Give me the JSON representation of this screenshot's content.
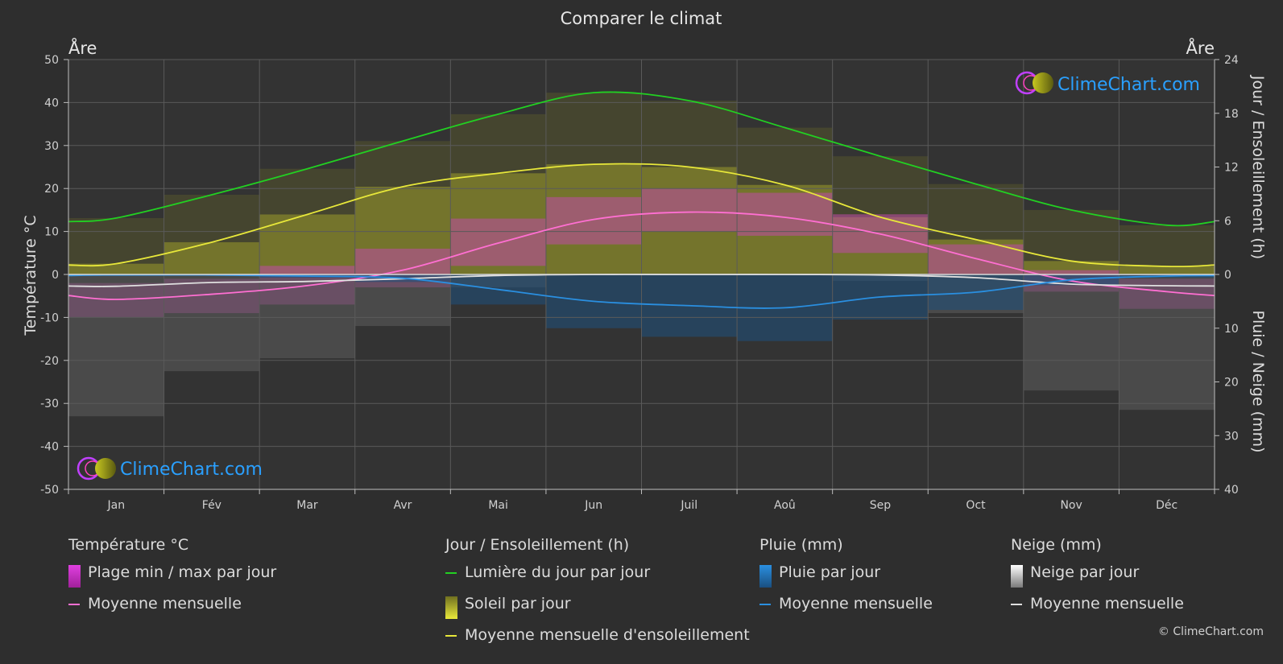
{
  "title": "Comparer le climat",
  "location_left": "Åre",
  "location_right": "Åre",
  "brand": "ClimeChart.com",
  "copyright": "© ClimeChart.com",
  "colors": {
    "background": "#2e2e2e",
    "daylight": "#22d022",
    "sunshine_mean": "#e8e83a",
    "temp_mean": "#ff6fd2",
    "rain_mean": "#2a8fe0",
    "snow_mean": "#e0e0e0",
    "brand_text": "#2aa0ff"
  },
  "chart_data": {
    "type": "climate-combo",
    "title": "Comparer le climat",
    "months": [
      "Jan",
      "Fév",
      "Mar",
      "Avr",
      "Mai",
      "Jun",
      "Juil",
      "Aoû",
      "Sep",
      "Oct",
      "Nov",
      "Déc"
    ],
    "y_left": {
      "label": "Température °C",
      "range": [
        -50,
        50
      ],
      "ticks": [
        50,
        40,
        30,
        20,
        10,
        0,
        -10,
        -20,
        -30,
        -40,
        -50
      ]
    },
    "y_right_top": {
      "label": "Jour / Ensoleillement (h)",
      "range": [
        0,
        24
      ],
      "ticks": [
        24,
        18,
        12,
        6,
        0
      ]
    },
    "y_right_bottom": {
      "label": "Pluie / Neige (mm)",
      "range": [
        0,
        40
      ],
      "ticks": [
        10,
        20,
        30,
        40
      ]
    },
    "series": [
      {
        "name": "Lumière du jour par jour",
        "unit": "h",
        "values": [
          6.3,
          8.9,
          11.8,
          14.9,
          17.9,
          20.3,
          19.4,
          16.4,
          13.2,
          10.1,
          7.2,
          5.5
        ]
      },
      {
        "name": "Moyenne mensuelle d'ensoleillement",
        "unit": "h",
        "values": [
          1.2,
          3.6,
          6.7,
          9.8,
          11.3,
          12.3,
          12.0,
          10.0,
          6.4,
          3.9,
          1.5,
          0.9
        ]
      },
      {
        "name": "Soleil par jour",
        "unit": "h",
        "values": [
          1.2,
          3.6,
          6.7,
          9.8,
          11.3,
          12.3,
          12.0,
          10.0,
          6.4,
          3.9,
          1.5,
          0.9
        ]
      },
      {
        "name": "Température moyenne mensuelle",
        "unit": "°C",
        "values": [
          -5.8,
          -4.6,
          -2.6,
          1.0,
          7.3,
          12.8,
          14.5,
          13.3,
          9.4,
          3.7,
          -1.5,
          -4.0
        ]
      },
      {
        "name": "Plage min / max par jour",
        "unit": "°C",
        "min": [
          -10,
          -9,
          -7,
          -3,
          2,
          7,
          10,
          9,
          5,
          0,
          -4,
          -8
        ],
        "max": [
          -2,
          -1,
          2,
          6,
          13,
          18,
          20,
          19,
          14,
          7,
          1,
          -1
        ]
      },
      {
        "name": "Pluie moyenne mensuelle",
        "unit": "mm",
        "values": [
          0.1,
          0.1,
          0.3,
          0.7,
          2.8,
          5.0,
          5.8,
          6.2,
          4.2,
          3.3,
          1.0,
          0.3
        ]
      },
      {
        "name": "Neige moyenne mensuelle",
        "unit": "mm",
        "values": [
          2.2,
          1.5,
          1.3,
          0.8,
          0.2,
          0.0,
          0.0,
          0.0,
          0.1,
          0.6,
          1.8,
          2.1
        ]
      }
    ]
  },
  "legend": {
    "temperature": {
      "header": "Température °C",
      "range": "Plage min / max par jour",
      "mean": "Moyenne mensuelle"
    },
    "sunshine": {
      "header": "Jour / Ensoleillement (h)",
      "daylight": "Lumière du jour par jour",
      "sun": "Soleil par jour",
      "mean": "Moyenne mensuelle d'ensoleillement"
    },
    "rain": {
      "header": "Pluie (mm)",
      "daily": "Pluie par jour",
      "mean": "Moyenne mensuelle"
    },
    "snow": {
      "header": "Neige (mm)",
      "daily": "Neige par jour",
      "mean": "Moyenne mensuelle"
    }
  }
}
